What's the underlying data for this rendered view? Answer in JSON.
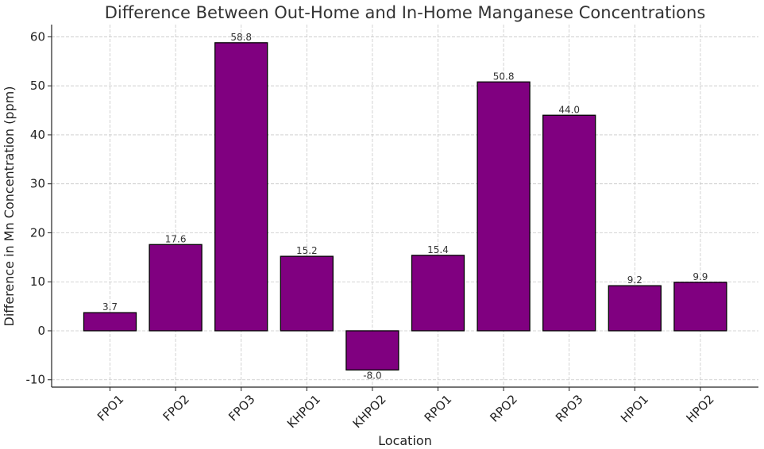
{
  "chart_data": {
    "type": "bar",
    "title": "Difference Between Out-Home and In-Home Manganese Concentrations",
    "xlabel": "Location",
    "ylabel": "Difference in Mn Concentration (ppm)",
    "categories": [
      "FPO1",
      "FPO2",
      "FPO3",
      "KHPO1",
      "KHPO2",
      "RPO1",
      "RPO2",
      "RPO3",
      "HPO1",
      "HPO2"
    ],
    "values": [
      3.7,
      17.6,
      58.8,
      15.2,
      -8.0,
      15.4,
      50.8,
      44.0,
      9.2,
      9.9
    ],
    "data_labels": [
      "3.7",
      "17.6",
      "58.8",
      "15.2",
      "-8.0",
      "15.4",
      "50.8",
      "44.0",
      "9.2",
      "9.9"
    ],
    "ylim": [
      -11.5,
      62.5
    ],
    "yticks": [
      -10,
      0,
      10,
      20,
      30,
      40,
      50,
      60
    ],
    "grid": true,
    "bar_color": "#800080",
    "edge_color": "#000000"
  }
}
